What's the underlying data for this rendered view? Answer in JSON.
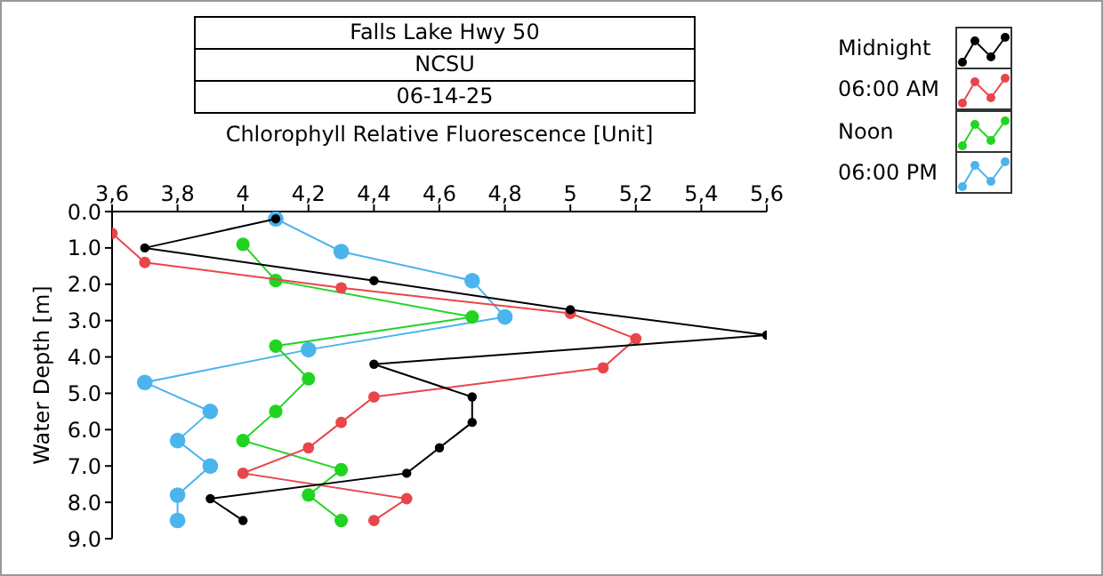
{
  "chart_data": {
    "type": "line",
    "orientation": "horizontal",
    "title": "Falls Lake Hwy 50",
    "subtitle": "NCSU",
    "annotations": [
      "06-14-25"
    ],
    "xlabel": "Chlorophyll Relative Fluorescence [Unit]",
    "ylabel": "Water Depth [m]",
    "xlim": [
      3.6,
      5.6
    ],
    "xticks": [
      {
        "value": 3.6,
        "label": "3,6"
      },
      {
        "value": 3.8,
        "label": "3,8"
      },
      4,
      {
        "value": 4.2,
        "label": "4,2"
      },
      {
        "value": 4.4,
        "label": "4,4"
      },
      {
        "value": 4.6,
        "label": "4,6"
      },
      {
        "value": 4.8,
        "label": "4,8"
      },
      5,
      {
        "value": 5.2,
        "label": "5,2"
      },
      {
        "value": 5.4,
        "label": "5,4"
      },
      {
        "value": 5.6,
        "label": "5,6"
      }
    ],
    "ylim": [
      9,
      0
    ],
    "yticks": [
      {
        "value": 0,
        "label": "0.0"
      },
      {
        "value": 1,
        "label": "1.0"
      },
      {
        "value": 2,
        "label": "2.0"
      },
      {
        "value": 3,
        "label": "3.0"
      },
      {
        "value": 4,
        "label": "4.0"
      },
      {
        "value": 5,
        "label": "5.0"
      },
      {
        "value": 6,
        "label": "6.0"
      },
      {
        "value": 7,
        "label": "7.0"
      },
      {
        "value": 8,
        "label": "8.0"
      },
      {
        "value": 9,
        "label": "9.0"
      }
    ],
    "legend": "top right",
    "marker": "circle",
    "line_style": "solid",
    "series": [
      {
        "name": "Midnight",
        "color": "#000000",
        "x": [
          0.2,
          1.0,
          1.9,
          2.7,
          3.4,
          4.2,
          5.1,
          5.8,
          6.5,
          7.2,
          7.9,
          8.5
        ],
        "values": [
          4.1,
          3.7,
          4.4,
          5.0,
          5.6,
          4.4,
          4.7,
          4.7,
          4.6,
          4.5,
          3.9,
          4.0
        ]
      },
      {
        "name": "06:00 AM",
        "color": "#e8464a",
        "x": [
          0.6,
          1.4,
          2.1,
          2.8,
          3.5,
          4.3,
          5.1,
          5.8,
          6.5,
          7.2,
          7.9,
          8.5
        ],
        "values": [
          3.6,
          3.7,
          4.3,
          5.0,
          5.2,
          5.1,
          4.4,
          4.3,
          4.2,
          4.0,
          4.5,
          4.4
        ]
      },
      {
        "name": "Noon",
        "color": "#22d422",
        "x": [
          0.9,
          1.9,
          2.9,
          3.7,
          4.6,
          5.5,
          6.3,
          7.1,
          7.8,
          8.5
        ],
        "values": [
          4.0,
          4.1,
          4.7,
          4.1,
          4.2,
          4.1,
          4.0,
          4.3,
          4.2,
          4.3
        ]
      },
      {
        "name": "06:00 PM",
        "color": "#4ab4ec",
        "x": [
          0.2,
          1.1,
          1.9,
          2.9,
          3.8,
          4.7,
          5.5,
          6.3,
          7.0,
          7.8,
          8.5
        ],
        "values": [
          4.1,
          4.3,
          4.7,
          4.8,
          4.2,
          3.7,
          3.9,
          3.8,
          3.9,
          3.8,
          3.8
        ]
      }
    ]
  }
}
